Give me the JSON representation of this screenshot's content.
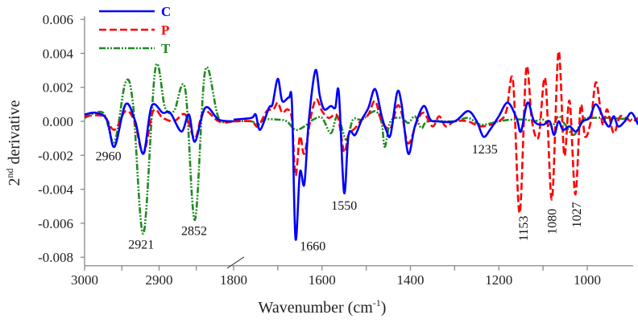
{
  "chart_data": {
    "type": "line",
    "title": "",
    "xlabel": "Wavenumber (cm",
    "xlabel_sup": "-1",
    "xlabel_end": ")",
    "ylabel": "2",
    "ylabel_sup": "nd",
    "ylabel_rest": " derivative",
    "x_break": [
      2800,
      1800
    ],
    "xlim_left": [
      3000,
      2800
    ],
    "xlim_right": [
      1800,
      880
    ],
    "ylim": [
      -0.0085,
      0.006
    ],
    "x_tick_labels": [
      "3000",
      "2900",
      "1800",
      "1600",
      "1400",
      "1200",
      "1000"
    ],
    "x_tick_values": [
      3000,
      2900,
      1800,
      1600,
      1400,
      1200,
      1000
    ],
    "x_minor_ticks": [
      2950,
      2850,
      1700,
      1500,
      1300,
      1100
    ],
    "y_tick_labels": [
      "0.006",
      "0.004",
      "0.002",
      "0.000",
      "-0.002",
      "-0.004",
      "-0.006",
      "-0.008"
    ],
    "y_tick_values": [
      0.006,
      0.004,
      0.002,
      0.0,
      -0.002,
      -0.004,
      -0.006,
      -0.008
    ],
    "legend": {
      "placement": "top-left"
    },
    "series": [
      {
        "name": "C",
        "color": "#0000ff",
        "style": "solid",
        "left": [
          [
            3000,
            0.0004
          ],
          [
            2985,
            0.0005
          ],
          [
            2970,
            0.0001
          ],
          [
            2960,
            -0.0015
          ],
          [
            2945,
            0.001
          ],
          [
            2932,
            0.0
          ],
          [
            2921,
            -0.0019
          ],
          [
            2910,
            0.0009
          ],
          [
            2895,
            0.0005
          ],
          [
            2885,
            0.0005
          ],
          [
            2870,
            -0.0006
          ],
          [
            2860,
            0.0004
          ],
          [
            2852,
            -0.0012
          ],
          [
            2838,
            0.0008
          ],
          [
            2820,
            0.0001
          ],
          [
            2800,
            0.0
          ]
        ],
        "right": [
          [
            1800,
            0.0001
          ],
          [
            1760,
            0.0002
          ],
          [
            1750,
            0.0004
          ],
          [
            1740,
            -0.0005
          ],
          [
            1720,
            0.0008
          ],
          [
            1712,
            0.001
          ],
          [
            1700,
            0.0025
          ],
          [
            1690,
            0.0012
          ],
          [
            1675,
            0.0014
          ],
          [
            1668,
            0.001
          ],
          [
            1660,
            -0.0069
          ],
          [
            1650,
            -0.003
          ],
          [
            1640,
            -0.0037
          ],
          [
            1630,
            0.0
          ],
          [
            1615,
            0.003
          ],
          [
            1605,
            0.0015
          ],
          [
            1595,
            0.0007
          ],
          [
            1580,
            0.0009
          ],
          [
            1570,
            0.0008
          ],
          [
            1562,
            0.0017
          ],
          [
            1550,
            -0.0042
          ],
          [
            1540,
            -0.0008
          ],
          [
            1525,
            -0.0008
          ],
          [
            1510,
            0.0001
          ],
          [
            1495,
            0.0008
          ],
          [
            1480,
            0.0019
          ],
          [
            1465,
            0.0003
          ],
          [
            1455,
            -0.0005
          ],
          [
            1445,
            -0.0008
          ],
          [
            1430,
            0.0017
          ],
          [
            1420,
            0.001
          ],
          [
            1405,
            -0.0019
          ],
          [
            1390,
            -0.0003
          ],
          [
            1370,
            0.0009
          ],
          [
            1355,
            0.0001
          ],
          [
            1340,
            0.0
          ],
          [
            1300,
            0.0
          ],
          [
            1270,
            0.0006
          ],
          [
            1250,
            0.0
          ],
          [
            1235,
            -0.0009
          ],
          [
            1220,
            -0.0005
          ],
          [
            1200,
            0.0003
          ],
          [
            1180,
            0.0011
          ],
          [
            1160,
            0.0002
          ],
          [
            1150,
            -0.0006
          ],
          [
            1135,
            0.0011
          ],
          [
            1120,
            0.0
          ],
          [
            1100,
            -0.0002
          ],
          [
            1085,
            0.0
          ],
          [
            1075,
            -0.0008
          ],
          [
            1065,
            0.0
          ],
          [
            1055,
            -0.0005
          ],
          [
            1040,
            -0.0003
          ],
          [
            1025,
            -0.0006
          ],
          [
            1010,
            0.0
          ],
          [
            995,
            0.0002
          ],
          [
            980,
            0.001
          ],
          [
            960,
            0.0
          ],
          [
            950,
            -0.0003
          ],
          [
            940,
            0.0003
          ],
          [
            930,
            -0.0003
          ],
          [
            915,
            0.0
          ],
          [
            900,
            0.0005
          ],
          [
            885,
            -0.0002
          ]
        ]
      },
      {
        "name": "P",
        "color": "#ff0000",
        "style": "dashed",
        "left": [
          [
            3000,
            0.0003
          ],
          [
            2975,
            0.0003
          ],
          [
            2960,
            -0.0005
          ],
          [
            2945,
            0.0006
          ],
          [
            2933,
            0.0
          ],
          [
            2921,
            -0.0019
          ],
          [
            2908,
            0.0006
          ],
          [
            2895,
            0.0002
          ],
          [
            2880,
            0.0
          ],
          [
            2865,
            0.0004
          ],
          [
            2852,
            -0.001
          ],
          [
            2840,
            0.0006
          ],
          [
            2820,
            0.0
          ],
          [
            2800,
            0.0
          ]
        ],
        "right": [
          [
            1800,
            0.0
          ],
          [
            1760,
            0.0
          ],
          [
            1745,
            -0.0003
          ],
          [
            1725,
            0.0006
          ],
          [
            1710,
            0.0007
          ],
          [
            1700,
            0.0011
          ],
          [
            1690,
            0.0005
          ],
          [
            1678,
            0.0007
          ],
          [
            1668,
            0.0001
          ],
          [
            1660,
            -0.0032
          ],
          [
            1650,
            -0.0009
          ],
          [
            1640,
            -0.0019
          ],
          [
            1625,
            0.0003
          ],
          [
            1613,
            0.0013
          ],
          [
            1600,
            0.0006
          ],
          [
            1585,
            0.0002
          ],
          [
            1565,
            0.0003
          ],
          [
            1550,
            -0.0018
          ],
          [
            1540,
            -0.0008
          ],
          [
            1525,
            -0.0004
          ],
          [
            1510,
            0.0001
          ],
          [
            1495,
            0.0004
          ],
          [
            1480,
            0.0012
          ],
          [
            1465,
            0.0
          ],
          [
            1445,
            -0.0004
          ],
          [
            1430,
            0.0009
          ],
          [
            1420,
            0.0005
          ],
          [
            1405,
            -0.0013
          ],
          [
            1385,
            0.0
          ],
          [
            1370,
            0.0005
          ],
          [
            1350,
            -0.0003
          ],
          [
            1335,
            0.0003
          ],
          [
            1320,
            -0.0003
          ],
          [
            1300,
            0.0
          ],
          [
            1270,
            0.0
          ],
          [
            1240,
            -0.0003
          ],
          [
            1200,
            0.0
          ],
          [
            1183,
            0.0006
          ],
          [
            1168,
            0.0024
          ],
          [
            1153,
            -0.0054
          ],
          [
            1138,
            0.0031
          ],
          [
            1125,
            0.0
          ],
          [
            1110,
            -0.0009
          ],
          [
            1095,
            0.0025
          ],
          [
            1080,
            -0.0046
          ],
          [
            1065,
            0.0041
          ],
          [
            1052,
            -0.002
          ],
          [
            1040,
            0.0012
          ],
          [
            1027,
            -0.0043
          ],
          [
            1015,
            0.0009
          ],
          [
            1005,
            -0.0009
          ],
          [
            992,
            0.0
          ],
          [
            980,
            0.0023
          ],
          [
            965,
            -0.0002
          ],
          [
            955,
            0.0007
          ],
          [
            940,
            -0.0007
          ],
          [
            925,
            0.0003
          ],
          [
            900,
            0.0
          ],
          [
            885,
            0.0002
          ]
        ]
      },
      {
        "name": "T",
        "color": "#218a21",
        "style": "dash-dot-dot",
        "left": [
          [
            3000,
            0.0002
          ],
          [
            2975,
            0.0005
          ],
          [
            2960,
            -0.0012
          ],
          [
            2945,
            0.0023
          ],
          [
            2935,
            0.001
          ],
          [
            2921,
            -0.0066
          ],
          [
            2905,
            0.0031
          ],
          [
            2892,
            0.0008
          ],
          [
            2880,
            0.0006
          ],
          [
            2865,
            0.0019
          ],
          [
            2852,
            -0.0058
          ],
          [
            2838,
            0.003
          ],
          [
            2820,
            0.0002
          ],
          [
            2800,
            0.0
          ]
        ],
        "right": [
          [
            1800,
            0.0
          ],
          [
            1760,
            0.0
          ],
          [
            1745,
            -0.0002
          ],
          [
            1730,
            0.0001
          ],
          [
            1700,
            0.0001
          ],
          [
            1680,
            0.0
          ],
          [
            1660,
            -0.0005
          ],
          [
            1640,
            -0.0003
          ],
          [
            1620,
            0.0001
          ],
          [
            1600,
            0.0002
          ],
          [
            1580,
            -0.0007
          ],
          [
            1565,
            0.0003
          ],
          [
            1545,
            -0.0011
          ],
          [
            1530,
            0.0001
          ],
          [
            1510,
            0.0001
          ],
          [
            1480,
            0.0006
          ],
          [
            1465,
            -0.0001
          ],
          [
            1458,
            -0.0015
          ],
          [
            1445,
            0.0
          ],
          [
            1420,
            0.0002
          ],
          [
            1405,
            -0.0001
          ],
          [
            1390,
            0.0003
          ],
          [
            1375,
            -0.0004
          ],
          [
            1360,
            0.0
          ],
          [
            1300,
            0.0
          ],
          [
            1270,
            0.0002
          ],
          [
            1240,
            -0.0002
          ],
          [
            1200,
            0.0
          ],
          [
            1170,
            0.0001
          ],
          [
            1140,
            0.0001
          ],
          [
            1120,
            0.0
          ],
          [
            1100,
            0.0001
          ],
          [
            1080,
            -0.0003
          ],
          [
            1065,
            0.0003
          ],
          [
            1050,
            -0.0002
          ],
          [
            1030,
            -0.0008
          ],
          [
            1010,
            0.0001
          ],
          [
            990,
            0.0002
          ],
          [
            950,
            0.0002
          ],
          [
            900,
            0.0001
          ],
          [
            885,
            0.0
          ]
        ]
      }
    ],
    "annotations": [
      {
        "text": "2960",
        "x": 2968,
        "y": -0.0023,
        "rotated": false
      },
      {
        "text": "2921",
        "x": 2924,
        "y": -0.0075,
        "rotated": false
      },
      {
        "text": "2852",
        "x": 2853,
        "y": -0.0067,
        "rotated": false
      },
      {
        "text": "1660",
        "x": 1621,
        "y": -0.0076,
        "rotated": false
      },
      {
        "text": "1550",
        "x": 1550,
        "y": -0.0052,
        "rotated": false
      },
      {
        "text": "1235",
        "x": 1232,
        "y": -0.0019,
        "rotated": false
      },
      {
        "text": "1153",
        "x": 1144,
        "y": -0.0063,
        "rotated": true
      },
      {
        "text": "1080",
        "x": 1079,
        "y": -0.0059,
        "rotated": true
      },
      {
        "text": "1027",
        "x": 1024,
        "y": -0.0055,
        "rotated": true
      }
    ]
  }
}
